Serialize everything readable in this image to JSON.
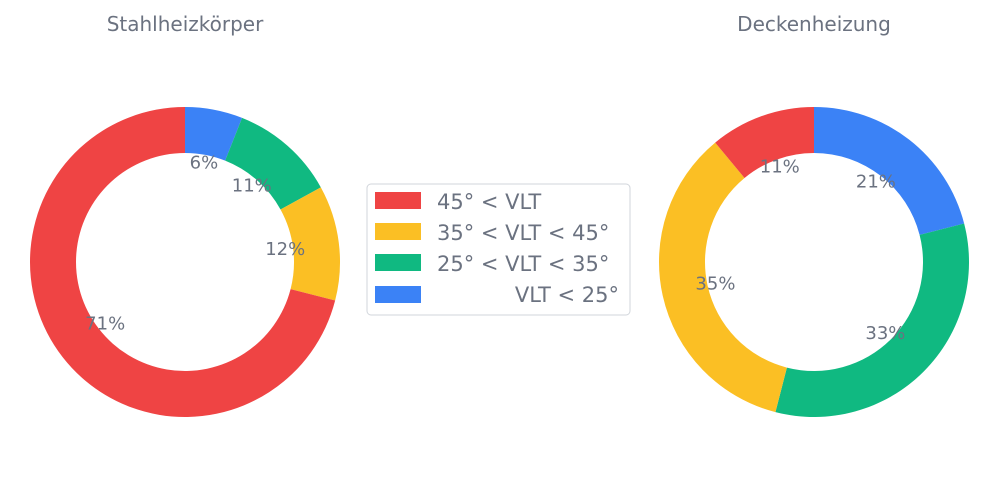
{
  "chart_data": [
    {
      "type": "donut",
      "title": "Stahlheizkörper",
      "start_angle_deg": 90,
      "direction": "clockwise",
      "order": [
        "VLT < 25°",
        "25° < VLT < 35°",
        "35° < VLT < 45°",
        "45° < VLT"
      ],
      "slices": [
        {
          "label": "VLT < 25°",
          "value": 6,
          "display": "6%"
        },
        {
          "label": "25° < VLT < 35°",
          "value": 11,
          "display": "11%"
        },
        {
          "label": "35° < VLT < 45°",
          "value": 12,
          "display": "12%"
        },
        {
          "label": "45° < VLT",
          "value": 71,
          "display": "71%"
        }
      ]
    },
    {
      "type": "donut",
      "title": "Deckenheizung",
      "start_angle_deg": 90,
      "direction": "clockwise",
      "order": [
        "VLT < 25°",
        "25° < VLT < 35°",
        "35° < VLT < 45°",
        "45° < VLT"
      ],
      "slices": [
        {
          "label": "VLT < 25°",
          "value": 21,
          "display": "21%"
        },
        {
          "label": "25° < VLT < 35°",
          "value": 33,
          "display": "33%"
        },
        {
          "label": "35° < VLT < 45°",
          "value": 35,
          "display": "35%"
        },
        {
          "label": "45° < VLT",
          "value": 11,
          "display": "11%"
        }
      ]
    }
  ],
  "legend": {
    "placement": "center",
    "items": [
      {
        "label": "45° < VLT",
        "color": "#ef4444"
      },
      {
        "label": "35° < VLT < 45°",
        "color": "#fbbf24"
      },
      {
        "label": "25° < VLT < 35°",
        "color": "#10b981"
      },
      {
        "label": "VLT < 25°",
        "color": "#3b82f6"
      }
    ]
  },
  "colors": {
    "45° < VLT": "#ef4444",
    "35° < VLT < 45°": "#fbbf24",
    "25° < VLT < 35°": "#10b981",
    "VLT < 25°": "#3b82f6"
  }
}
